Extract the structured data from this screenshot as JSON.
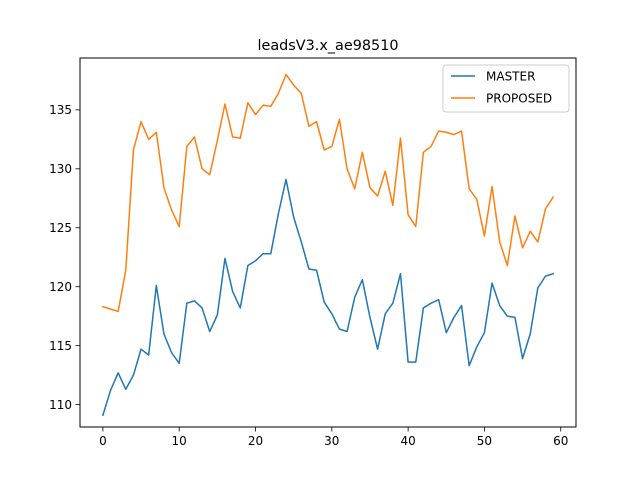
{
  "chart_data": {
    "type": "line",
    "title": "leadsV3.x_ae98510",
    "xlabel": "",
    "ylabel": "",
    "xlim": [
      -3,
      62
    ],
    "ylim": [
      108.1,
      139.4
    ],
    "xticks": [
      0,
      10,
      20,
      30,
      40,
      50,
      60
    ],
    "yticks": [
      110,
      115,
      120,
      125,
      130,
      135
    ],
    "legend_position": "top-right",
    "grid": false,
    "x": [
      0,
      1,
      2,
      3,
      4,
      5,
      6,
      7,
      8,
      9,
      10,
      11,
      12,
      13,
      14,
      15,
      16,
      17,
      18,
      19,
      20,
      21,
      22,
      23,
      24,
      25,
      26,
      27,
      28,
      29,
      30,
      31,
      32,
      33,
      34,
      35,
      36,
      37,
      38,
      39,
      40,
      41,
      42,
      43,
      44,
      45,
      46,
      47,
      48,
      49,
      50,
      51,
      52,
      53,
      54,
      55,
      56,
      57,
      58,
      59
    ],
    "series": [
      {
        "name": "MASTER",
        "color": "#1f77b4",
        "values": [
          109.1,
          111.2,
          112.7,
          111.3,
          112.5,
          114.7,
          114.2,
          120.1,
          116.0,
          114.4,
          113.5,
          118.6,
          118.8,
          118.2,
          116.2,
          117.6,
          122.4,
          119.6,
          118.2,
          121.8,
          122.2,
          122.8,
          122.8,
          126.2,
          129.1,
          125.9,
          123.8,
          121.5,
          121.4,
          118.7,
          117.7,
          116.4,
          116.2,
          119.1,
          120.6,
          117.4,
          114.7,
          117.7,
          118.6,
          121.1,
          113.6,
          113.6,
          118.2,
          118.6,
          118.9,
          116.1,
          117.4,
          118.4,
          113.3,
          114.9,
          116.1,
          120.3,
          118.4,
          117.5,
          117.4,
          113.9,
          116.0,
          119.9,
          120.9,
          121.1
        ]
      },
      {
        "name": "PROPOSED",
        "color": "#ff7f0e",
        "values": [
          118.3,
          118.1,
          117.9,
          121.4,
          131.6,
          134.0,
          132.5,
          133.1,
          128.4,
          126.5,
          125.1,
          131.9,
          132.7,
          130.0,
          129.5,
          132.4,
          135.5,
          132.7,
          132.6,
          135.6,
          134.6,
          135.4,
          135.3,
          136.4,
          138.0,
          137.1,
          136.4,
          133.6,
          134.0,
          131.6,
          131.9,
          134.2,
          130.0,
          128.3,
          131.4,
          128.4,
          127.7,
          129.8,
          126.9,
          132.6,
          126.1,
          125.1,
          131.4,
          131.9,
          133.2,
          133.1,
          132.9,
          133.2,
          128.3,
          127.4,
          124.3,
          128.5,
          123.8,
          121.8,
          126.0,
          123.3,
          124.7,
          123.8,
          126.6,
          127.6
        ]
      }
    ]
  }
}
